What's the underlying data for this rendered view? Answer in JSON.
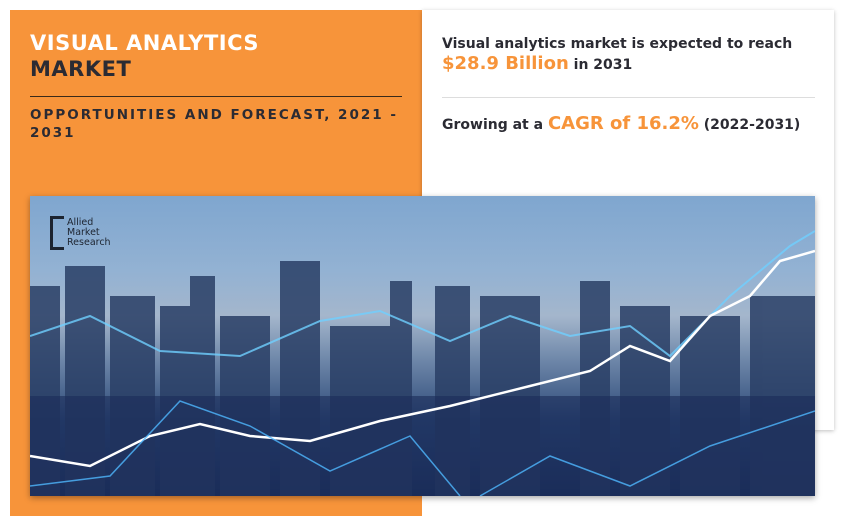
{
  "left_panel": {
    "title_line1": "VISUAL ANALYTICS",
    "title_line2": "MARKET",
    "subtitle": "OPPORTUNITIES AND FORECAST, 2021 - 2031"
  },
  "right_panel": {
    "stat1_prefix": "Visual analytics market is expected to reach",
    "stat1_value": "$28.9 Billion",
    "stat1_suffix": "in 2031",
    "stat2_prefix": "Growing at a",
    "stat2_value": "CAGR of 16.2%",
    "stat2_suffix": "(2022-2031)"
  },
  "logo": {
    "line1": "Allied",
    "line2": "Market",
    "line3": "Research"
  },
  "colors": {
    "accent": "#f7943a",
    "text": "#2b2b33"
  }
}
